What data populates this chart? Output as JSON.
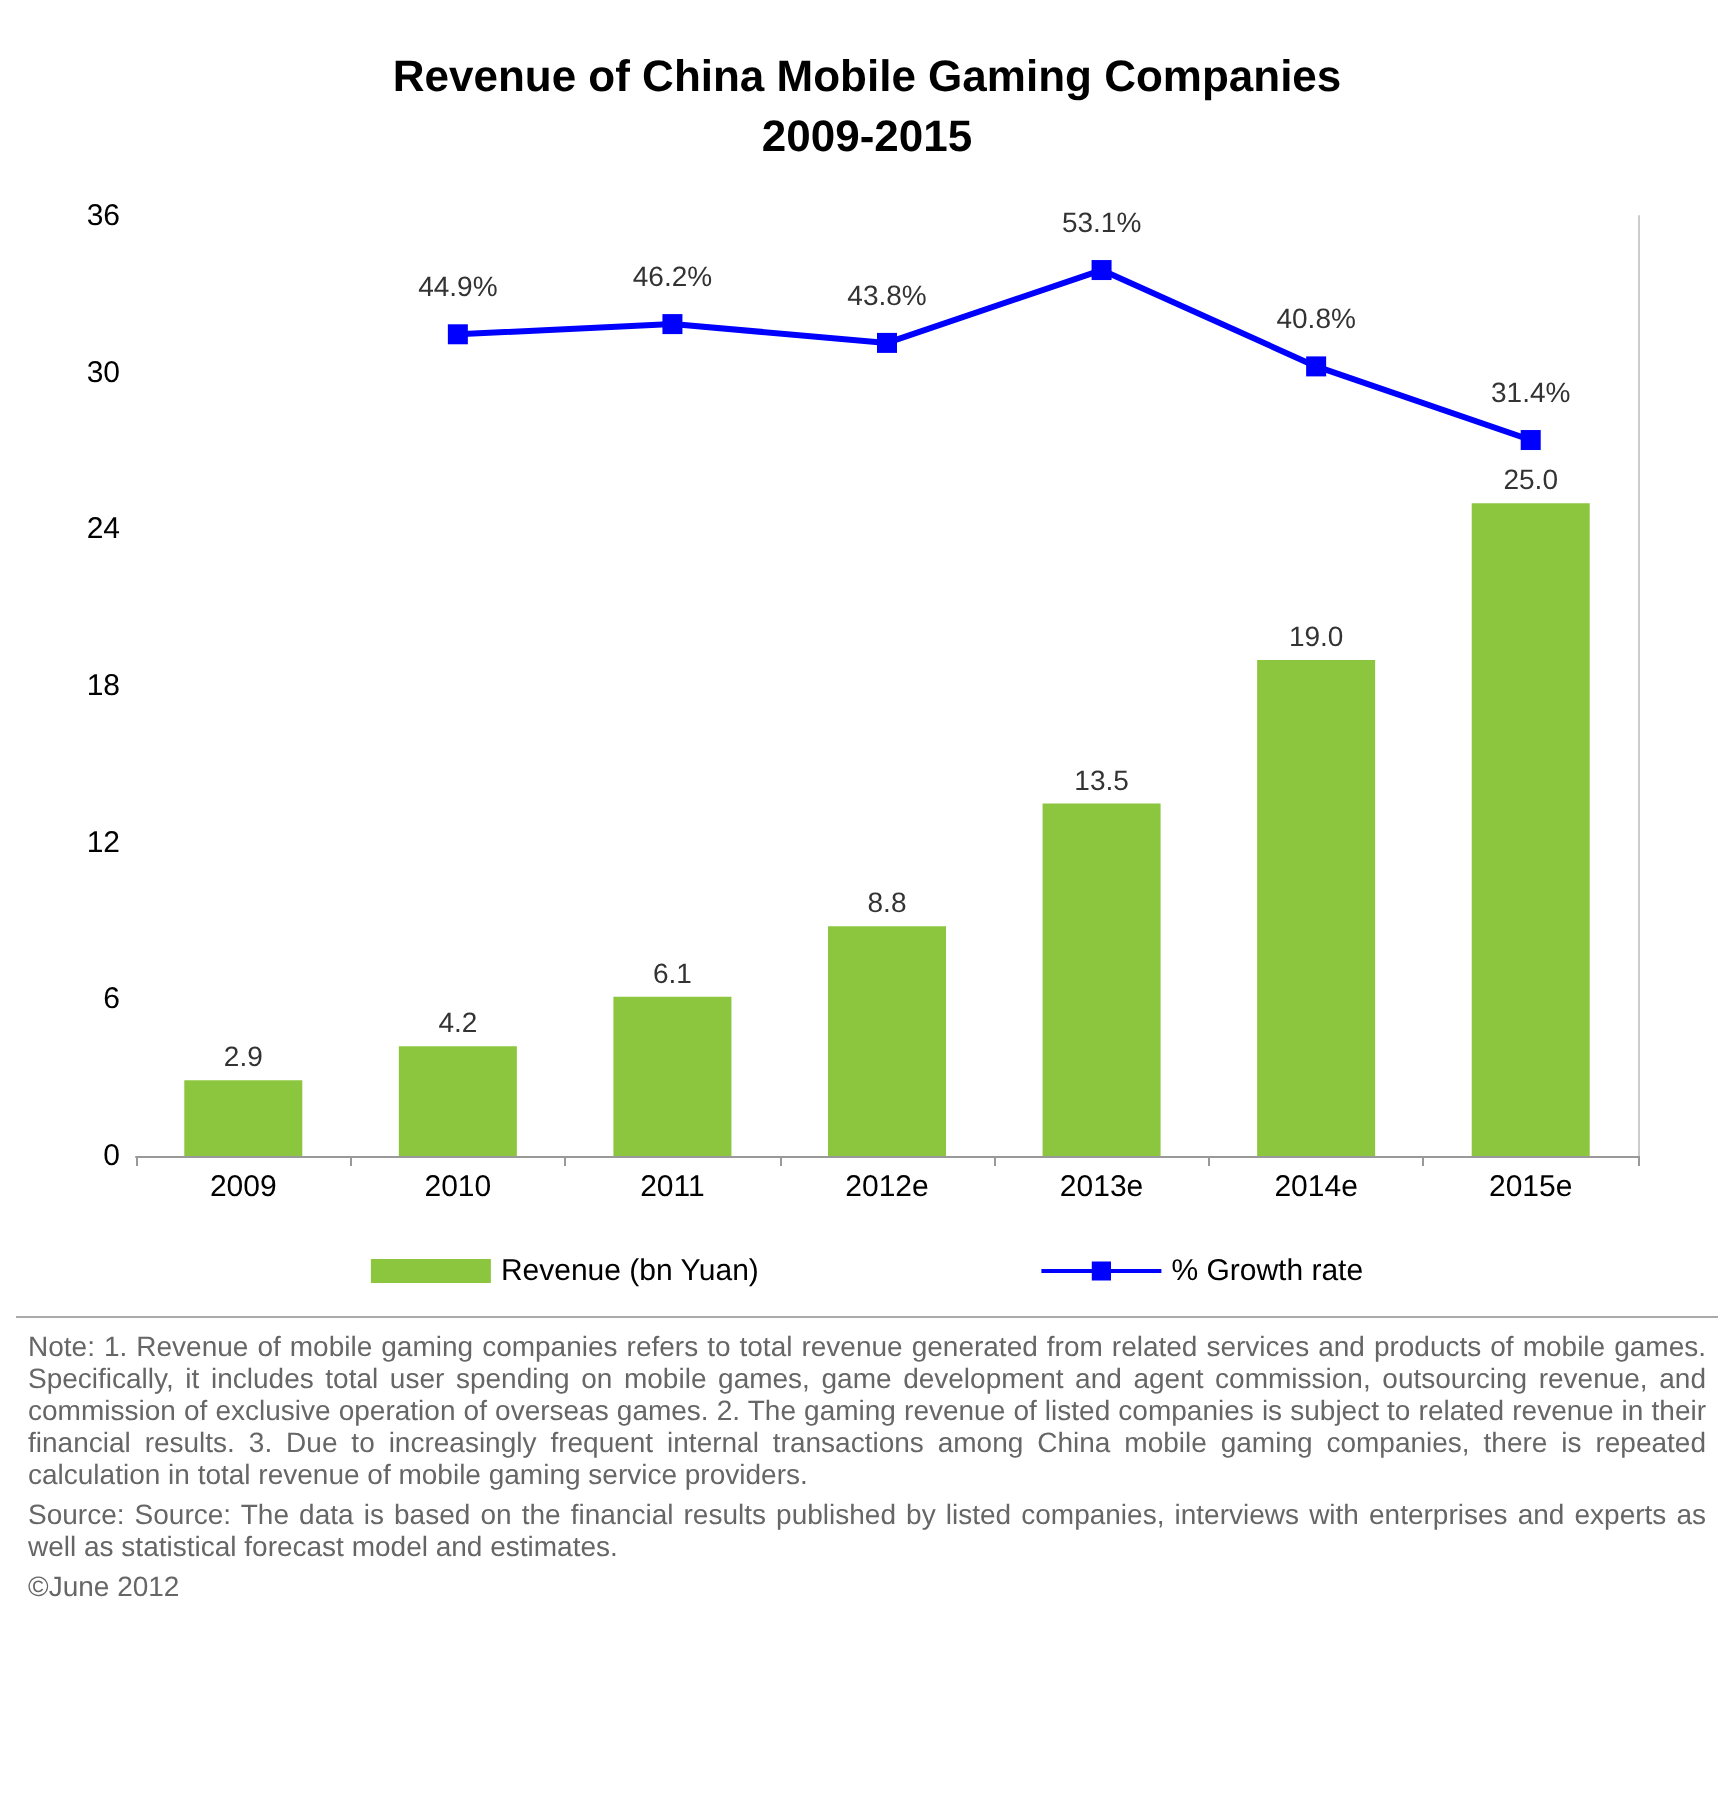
{
  "chart_data": {
    "type": "bar",
    "title": "Revenue of China Mobile Gaming Companies\n2009-2015",
    "categories": [
      "2009",
      "2010",
      "2011",
      "2012e",
      "2013e",
      "2014e",
      "2015e"
    ],
    "series": [
      {
        "name": "Revenue (bn Yuan)",
        "color": "#8cc63f",
        "values": [
          2.9,
          4.2,
          6.1,
          8.8,
          13.5,
          19.0,
          25.0
        ],
        "value_labels": [
          "2.9",
          "4.2",
          "6.1",
          "8.8",
          "13.5",
          "19.0",
          "25.0"
        ]
      },
      {
        "name": "% Growth rate",
        "type": "line",
        "axis": "y2",
        "color": "#0000ff",
        "marker": "square",
        "values": [
          null,
          44.9,
          46.2,
          43.8,
          53.1,
          40.8,
          31.4
        ],
        "value_labels": [
          null,
          "44.9%",
          "46.2%",
          "43.8%",
          "53.1%",
          "40.8%",
          "31.4%"
        ]
      }
    ],
    "ylim": [
      0,
      36
    ],
    "yticks": [
      0,
      6,
      12,
      18,
      24,
      30,
      36
    ],
    "y2lim": [
      -60,
      60
    ],
    "tick_labels": "xy",
    "grid": false,
    "legend": "bottom",
    "annotations": [
      "Note: 1. Revenue of mobile gaming companies refers to total revenue generated from related services and products of mobile games. Specifically, it includes total user spending on mobile games, game development and agent commission, outsourcing revenue, and commission of exclusive operation of overseas games. 2. The gaming revenue of listed companies is subject to related revenue in their financial results. 3. Due to increasingly frequent internal transactions among China mobile gaming companies, there is repeated calculation in total revenue of mobile gaming service providers.",
      "Source: Source: The data is based on the financial results published by listed companies, interviews with enterprises and experts as well as statistical forecast model and estimates.",
      "©June 2012"
    ]
  }
}
